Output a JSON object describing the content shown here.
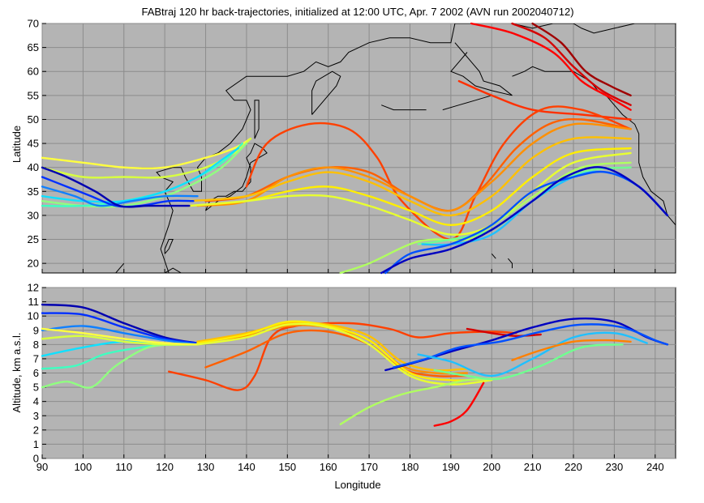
{
  "figure": {
    "title": "FABtraj 120 hr back-trajectories, initialized at 12:00 UTC, Apr. 7 2002 (AVN run 2002040712)"
  },
  "chart_data": [
    {
      "type": "line",
      "panel": "map",
      "xlabel": "",
      "ylabel": "Latitude",
      "xlim": [
        90,
        245
      ],
      "ylim": [
        18,
        70
      ],
      "xticks": [
        90,
        100,
        110,
        120,
        130,
        140,
        150,
        160,
        170,
        180,
        190,
        200,
        210,
        220,
        230,
        240
      ],
      "yticks": [
        20,
        25,
        30,
        35,
        40,
        45,
        50,
        55,
        60,
        65,
        70
      ],
      "grid": true,
      "background": "#b4b4b4",
      "coastline_color": "#000000",
      "series": [
        {
          "color": "#ff0000",
          "x": [
            195,
            205,
            215,
            222,
            228,
            234
          ],
          "y": [
            70,
            68,
            64,
            58,
            55,
            52
          ]
        },
        {
          "color": "#d40000",
          "x": [
            205,
            213,
            220,
            227,
            234
          ],
          "y": [
            70,
            67,
            61,
            56,
            53
          ]
        },
        {
          "color": "#a00000",
          "x": [
            210,
            217,
            223,
            229,
            234
          ],
          "y": [
            70,
            66,
            60,
            57,
            55
          ]
        },
        {
          "color": "#ff3000",
          "x": [
            192,
            200,
            210,
            222,
            234
          ],
          "y": [
            58,
            55,
            52,
            51,
            50
          ]
        },
        {
          "color": "#ff4000",
          "x": [
            140,
            145,
            155,
            165,
            172,
            178,
            190,
            196,
            203,
            212,
            222,
            234
          ],
          "y": [
            36,
            45,
            49,
            48,
            42,
            33,
            25,
            34,
            45,
            52,
            52,
            48
          ]
        },
        {
          "color": "#ff6000",
          "x": [
            130,
            140,
            150,
            160,
            170,
            180,
            190,
            198,
            206,
            214,
            222,
            234
          ],
          "y": [
            33,
            34,
            38,
            40,
            39,
            34,
            31,
            36,
            44,
            49,
            50,
            48
          ]
        },
        {
          "color": "#ff9000",
          "x": [
            128,
            140,
            150,
            160,
            170,
            180,
            190,
            200,
            210,
            220,
            234
          ],
          "y": [
            32,
            33,
            38,
            40,
            38,
            34,
            31,
            37,
            45,
            49,
            48
          ]
        },
        {
          "color": "#ffc000",
          "x": [
            126,
            140,
            150,
            160,
            170,
            180,
            190,
            200,
            210,
            220,
            234
          ],
          "y": [
            33,
            34,
            37,
            39,
            37,
            33,
            30,
            34,
            42,
            46,
            46
          ]
        },
        {
          "color": "#ffee00",
          "x": [
            126,
            140,
            150,
            160,
            170,
            180,
            190,
            200,
            210,
            220,
            234
          ],
          "y": [
            32,
            33,
            35,
            36,
            34,
            31,
            28,
            31,
            38,
            43,
            44
          ]
        },
        {
          "color": "#e8ff30",
          "x": [
            126,
            140,
            150,
            160,
            170,
            180,
            190,
            200,
            210,
            220,
            234
          ],
          "y": [
            32,
            33,
            34,
            34,
            32,
            29,
            26,
            28,
            35,
            41,
            43
          ]
        },
        {
          "color": "#b0ff60",
          "x": [
            163,
            170,
            180,
            186,
            194,
            202,
            212,
            222,
            234
          ],
          "y": [
            18,
            20,
            24,
            25,
            25,
            29,
            35,
            40,
            41
          ]
        },
        {
          "color": "#70ff90",
          "x": [
            182,
            190,
            200,
            210,
            222,
            234
          ],
          "y": [
            24,
            25,
            27,
            33,
            39,
            40
          ]
        },
        {
          "color": "#20c0ff",
          "x": [
            183,
            190,
            200,
            210,
            220,
            228,
            236,
            243
          ],
          "y": [
            24,
            24,
            26,
            33,
            38,
            39,
            36,
            30
          ]
        },
        {
          "color": "#0050ff",
          "x": [
            174,
            180,
            190,
            200,
            210,
            220,
            228,
            236,
            243
          ],
          "y": [
            18,
            22,
            24,
            28,
            35,
            38,
            39,
            36,
            30
          ]
        },
        {
          "color": "#0000c0",
          "x": [
            173,
            180,
            190,
            200,
            210,
            218,
            227,
            236,
            243
          ],
          "y": [
            18,
            21,
            23,
            27,
            33,
            38,
            40,
            36,
            30
          ]
        },
        {
          "color": "#ffff40",
          "x": [
            90,
            100,
            110,
            120,
            130,
            137,
            141
          ],
          "y": [
            42,
            41,
            40,
            40,
            42,
            44,
            46
          ]
        },
        {
          "color": "#d8ff40",
          "x": [
            90,
            100,
            110,
            120,
            130,
            137,
            141
          ],
          "y": [
            40,
            38,
            38,
            38,
            40,
            43,
            46
          ]
        },
        {
          "color": "#90ff80",
          "x": [
            90,
            100,
            110,
            120,
            128,
            134,
            140
          ],
          "y": [
            33,
            32,
            32,
            34,
            37,
            40,
            45
          ]
        },
        {
          "color": "#40ffc0",
          "x": [
            90,
            100,
            110,
            120,
            128,
            134,
            139
          ],
          "y": [
            32,
            32,
            33,
            35,
            38,
            41,
            45
          ]
        },
        {
          "color": "#10e0ff",
          "x": [
            90,
            100,
            110,
            120,
            128,
            133,
            138
          ],
          "y": [
            34,
            33,
            33,
            35,
            38,
            41,
            44
          ]
        },
        {
          "color": "#1080ff",
          "x": [
            90,
            98,
            104,
            112,
            120,
            128
          ],
          "y": [
            36,
            34,
            32,
            33,
            34,
            34
          ]
        },
        {
          "color": "#0030ff",
          "x": [
            90,
            96,
            102,
            108,
            114,
            121,
            127
          ],
          "y": [
            38,
            36,
            34,
            32,
            32,
            33,
            33
          ]
        },
        {
          "color": "#0000b0",
          "x": [
            90,
            96,
            103,
            109,
            116,
            123,
            126
          ],
          "y": [
            40,
            38,
            35,
            32,
            32,
            32,
            32
          ]
        }
      ]
    },
    {
      "type": "line",
      "panel": "altitude",
      "xlabel": "Longitude",
      "ylabel": "Altitude, km a.s.l.",
      "xlim": [
        90,
        245
      ],
      "ylim": [
        0,
        12
      ],
      "xticks": [
        90,
        100,
        110,
        120,
        130,
        140,
        150,
        160,
        170,
        180,
        190,
        200,
        210,
        220,
        230,
        240
      ],
      "yticks": [
        0,
        1,
        2,
        3,
        4,
        5,
        6,
        7,
        8,
        9,
        10,
        11,
        12
      ],
      "grid": true,
      "background": "#b4b4b4",
      "series": [
        {
          "color": "#0000b0",
          "x": [
            90,
            100,
            110,
            120,
            128
          ],
          "y": [
            10.8,
            10.6,
            9.5,
            8.5,
            8.1
          ]
        },
        {
          "color": "#0030ff",
          "x": [
            90,
            100,
            110,
            120,
            128
          ],
          "y": [
            10.2,
            10.1,
            9.2,
            8.4,
            8.1
          ]
        },
        {
          "color": "#1080ff",
          "x": [
            90,
            100,
            110,
            120,
            128
          ],
          "y": [
            9.0,
            9.3,
            8.8,
            8.3,
            8.0
          ]
        },
        {
          "color": "#10e0ff",
          "x": [
            90,
            100,
            110,
            120,
            128
          ],
          "y": [
            7.2,
            7.8,
            8.2,
            8.0,
            8.0
          ]
        },
        {
          "color": "#40ffc0",
          "x": [
            90,
            98,
            105,
            112,
            120,
            128
          ],
          "y": [
            6.3,
            6.5,
            7.3,
            7.7,
            8.0,
            8.0
          ]
        },
        {
          "color": "#90ff80",
          "x": [
            90,
            96,
            102,
            108,
            116,
            124
          ],
          "y": [
            5.0,
            5.4,
            5.0,
            6.5,
            7.8,
            8.0
          ]
        },
        {
          "color": "#d8ff40",
          "x": [
            90,
            100,
            110,
            120,
            128
          ],
          "y": [
            8.4,
            8.6,
            8.2,
            8.0,
            8.0
          ]
        },
        {
          "color": "#ffff40",
          "x": [
            90,
            100,
            110,
            120,
            128
          ],
          "y": [
            9.1,
            8.8,
            8.4,
            8.1,
            8.0
          ]
        },
        {
          "color": "#ff4000",
          "x": [
            121,
            130,
            138,
            142,
            146,
            152,
            165,
            175,
            182,
            190,
            200,
            206
          ],
          "y": [
            6.1,
            5.5,
            4.8,
            5.8,
            8.5,
            9.3,
            9.5,
            9.1,
            8.5,
            8.8,
            8.9,
            8.8
          ]
        },
        {
          "color": "#ff6000",
          "x": [
            130,
            140,
            150,
            160,
            170,
            178,
            186,
            194
          ],
          "y": [
            6.4,
            7.5,
            8.8,
            8.9,
            8.0,
            6.3,
            5.8,
            5.8
          ]
        },
        {
          "color": "#ff9000",
          "x": [
            128,
            140,
            150,
            160,
            170,
            178,
            186,
            194
          ],
          "y": [
            8.2,
            8.6,
            9.3,
            9.2,
            8.3,
            6.5,
            6.0,
            6.0
          ]
        },
        {
          "color": "#ffc000",
          "x": [
            128,
            140,
            150,
            160,
            170,
            178,
            186,
            194
          ],
          "y": [
            8.2,
            8.8,
            9.5,
            9.4,
            8.6,
            6.8,
            6.2,
            6.3
          ]
        },
        {
          "color": "#ffee00",
          "x": [
            128,
            140,
            150,
            160,
            170,
            180,
            190,
            200
          ],
          "y": [
            8.1,
            8.7,
            9.6,
            9.3,
            8.3,
            6.0,
            5.5,
            5.6
          ]
        },
        {
          "color": "#e8ff30",
          "x": [
            128,
            140,
            150,
            160,
            170,
            180,
            190,
            200
          ],
          "y": [
            8.0,
            8.5,
            9.4,
            9.2,
            8.0,
            5.8,
            5.2,
            5.5
          ]
        },
        {
          "color": "#b0ff60",
          "x": [
            163,
            170,
            178,
            186,
            194,
            202
          ],
          "y": [
            2.4,
            3.6,
            4.5,
            5.0,
            5.5,
            5.6
          ]
        },
        {
          "color": "#ff0000",
          "x": [
            186,
            190,
            194,
            198
          ],
          "y": [
            2.3,
            2.6,
            3.4,
            5.3
          ]
        },
        {
          "color": "#d40000",
          "x": [
            194,
            200,
            206,
            212
          ],
          "y": [
            9.1,
            8.8,
            8.6,
            8.7
          ]
        },
        {
          "color": "#0000c0",
          "x": [
            174,
            182,
            190,
            200,
            210,
            220,
            230,
            238,
            243
          ],
          "y": [
            6.2,
            6.8,
            7.5,
            8.3,
            9.2,
            9.8,
            9.6,
            8.5,
            8.0
          ]
        },
        {
          "color": "#0050ff",
          "x": [
            176,
            184,
            192,
            202,
            212,
            222,
            232,
            240,
            243
          ],
          "y": [
            6.4,
            7.0,
            7.8,
            8.2,
            8.9,
            9.4,
            9.2,
            8.3,
            8.0
          ]
        },
        {
          "color": "#20c0ff",
          "x": [
            182,
            190,
            200,
            210,
            220,
            230,
            238
          ],
          "y": [
            7.3,
            6.8,
            5.8,
            7.0,
            8.5,
            8.8,
            8.1
          ]
        },
        {
          "color": "#70ff90",
          "x": [
            186,
            194,
            202,
            212,
            222,
            232
          ],
          "y": [
            6.2,
            5.8,
            5.6,
            6.5,
            7.8,
            8.0
          ]
        },
        {
          "color": "#ff8000",
          "x": [
            205,
            212,
            220,
            228,
            234
          ],
          "y": [
            6.9,
            7.6,
            8.2,
            8.3,
            8.2
          ]
        }
      ]
    }
  ]
}
